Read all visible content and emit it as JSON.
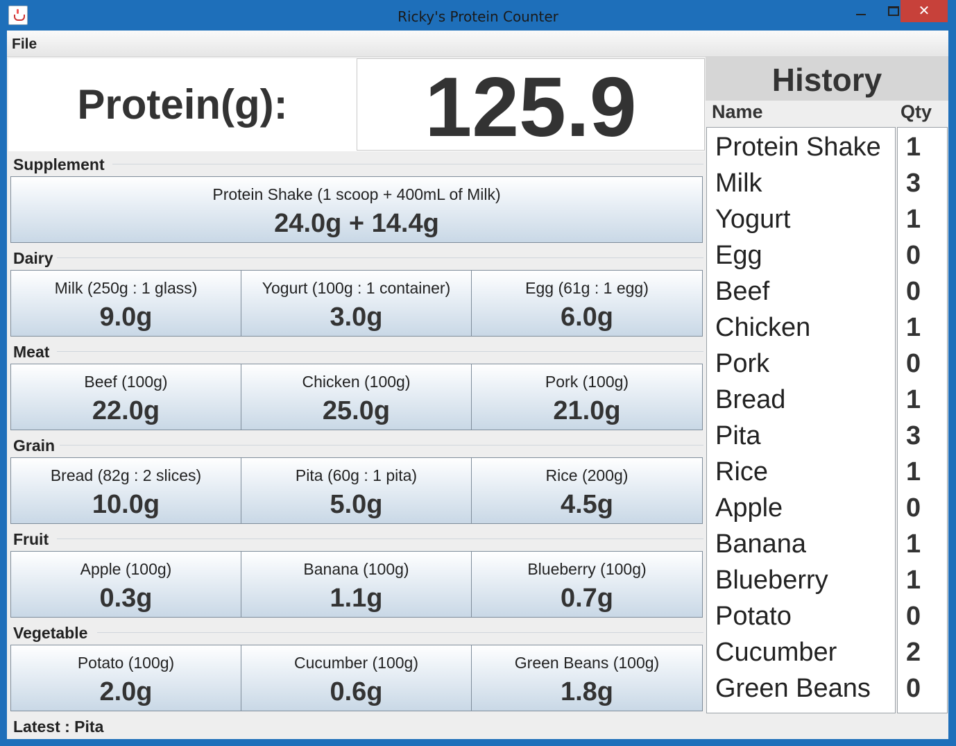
{
  "window": {
    "title": "Ricky's Protein Counter",
    "close_glyph": "✕"
  },
  "menu": {
    "file": "File"
  },
  "header": {
    "label": "Protein(g):",
    "value": "125.9"
  },
  "groups": [
    {
      "label": "Supplement",
      "items": [
        {
          "name": "Protein Shake (1 scoop + 400mL of Milk)",
          "value": "24.0g + 14.4g"
        }
      ]
    },
    {
      "label": "Dairy",
      "items": [
        {
          "name": "Milk (250g : 1 glass)",
          "value": "9.0g"
        },
        {
          "name": "Yogurt (100g : 1 container)",
          "value": "3.0g"
        },
        {
          "name": "Egg (61g : 1 egg)",
          "value": "6.0g"
        }
      ]
    },
    {
      "label": "Meat",
      "items": [
        {
          "name": "Beef (100g)",
          "value": "22.0g"
        },
        {
          "name": "Chicken (100g)",
          "value": "25.0g"
        },
        {
          "name": "Pork (100g)",
          "value": "21.0g"
        }
      ]
    },
    {
      "label": "Grain",
      "items": [
        {
          "name": "Bread (82g : 2 slices)",
          "value": "10.0g"
        },
        {
          "name": "Pita (60g : 1 pita)",
          "value": "5.0g"
        },
        {
          "name": "Rice (200g)",
          "value": "4.5g"
        }
      ]
    },
    {
      "label": "Fruit",
      "items": [
        {
          "name": "Apple (100g)",
          "value": "0.3g"
        },
        {
          "name": "Banana (100g)",
          "value": "1.1g"
        },
        {
          "name": "Blueberry (100g)",
          "value": "0.7g"
        }
      ]
    },
    {
      "label": "Vegetable",
      "items": [
        {
          "name": "Potato (100g)",
          "value": "2.0g"
        },
        {
          "name": "Cucumber (100g)",
          "value": "0.6g"
        },
        {
          "name": "Green Beans (100g)",
          "value": "1.8g"
        }
      ]
    }
  ],
  "history": {
    "title": "History",
    "name_header": "Name",
    "qty_header": "Qty",
    "rows": [
      {
        "name": "Protein Shake",
        "qty": "1"
      },
      {
        "name": "Milk",
        "qty": "3"
      },
      {
        "name": "Yogurt",
        "qty": "1"
      },
      {
        "name": "Egg",
        "qty": "0"
      },
      {
        "name": "Beef",
        "qty": "0"
      },
      {
        "name": "Chicken",
        "qty": "1"
      },
      {
        "name": "Pork",
        "qty": "0"
      },
      {
        "name": "Bread",
        "qty": "1"
      },
      {
        "name": "Pita",
        "qty": "3"
      },
      {
        "name": "Rice",
        "qty": "1"
      },
      {
        "name": "Apple",
        "qty": "0"
      },
      {
        "name": "Banana",
        "qty": "1"
      },
      {
        "name": "Blueberry",
        "qty": "1"
      },
      {
        "name": "Potato",
        "qty": "0"
      },
      {
        "name": "Cucumber",
        "qty": "2"
      },
      {
        "name": "Green Beans",
        "qty": "0"
      }
    ]
  },
  "status": {
    "latest": "Latest : Pita"
  }
}
